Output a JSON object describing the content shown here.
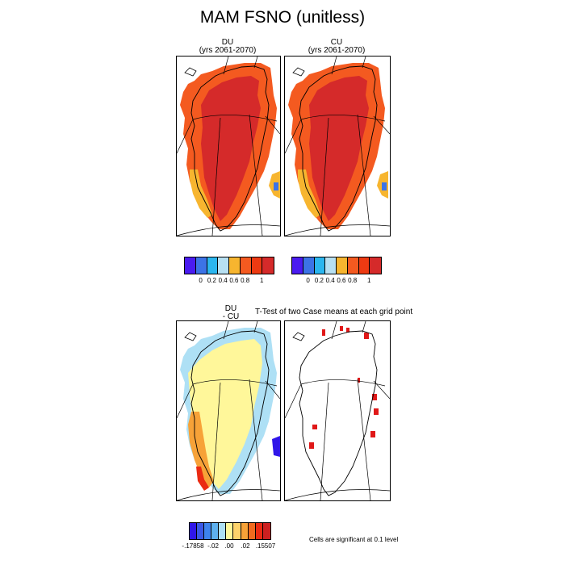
{
  "title": "MAM FSNO (unitless)",
  "panels": {
    "du": {
      "name": "DU",
      "period": "(yrs 2061-2070)"
    },
    "cu": {
      "name": "CU",
      "period": "(yrs 2061-2070)"
    },
    "diff": {
      "line1": "DU",
      "line2": "- CU"
    }
  },
  "ttest_title": "T-Test of two Case means at each grid point",
  "significance_note": "Cells are significant at 0.1 level",
  "colorbar_top": {
    "colors": [
      "#4a1bf0",
      "#3c73e6",
      "#2bb6ef",
      "#b7e0f2",
      "#f7b52f",
      "#f45a20",
      "#ed3a12",
      "#d52a2a"
    ],
    "ticks": [
      "0",
      "0.2",
      "0.4",
      "0.6",
      "0.8",
      "1"
    ]
  },
  "colorbar_diff": {
    "colors": [
      "#3016e8",
      "#3a57e6",
      "#3d83ee",
      "#5eb1ef",
      "#aee0f5",
      "#fff79a",
      "#fdd36b",
      "#f7a238",
      "#f16a1f",
      "#ea2a12",
      "#cc2020"
    ],
    "ticks": [
      "-.17858",
      "-.02",
      ".00",
      ".02",
      ".15507"
    ]
  },
  "map_colors": {
    "high": "#d52a2a",
    "mid": "#f45a20",
    "light": "#f7b52f",
    "pale": "#b7e0f2",
    "blue": "#3c73e6",
    "diff_fill": "#fff79a",
    "diff_pale": "#aee0f5",
    "diff_orange": "#f7a238",
    "diff_red": "#ea2a12",
    "diff_blue": "#3016e8",
    "sig_mark": "#e01818"
  }
}
